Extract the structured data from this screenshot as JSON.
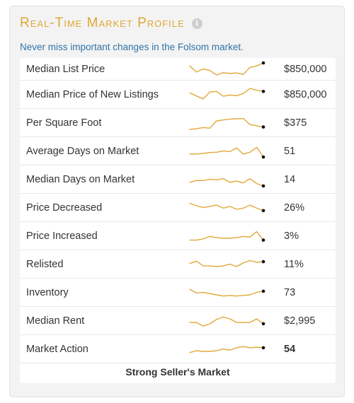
{
  "header": {
    "title": "Real-Time Market Profile",
    "info_icon": "info-icon",
    "info_glyph": "i",
    "subtitle": "Never miss important changes in the Folsom market."
  },
  "accent_color": "#dfa836",
  "rows": [
    {
      "label": "Median List Price",
      "value": "$850,000",
      "trend": [
        1,
        3,
        2,
        2.5,
        4,
        3.2,
        3.5,
        3.3,
        3.8,
        1.5,
        1,
        0
      ]
    },
    {
      "label": "Median Price of New Listings",
      "value": "$850,000",
      "trend": [
        1.5,
        2.5,
        3.5,
        1.2,
        1,
        2.6,
        2.2,
        2.4,
        1.7,
        0,
        0.6,
        1
      ]
    },
    {
      "label": "Per Square Foot",
      "value": "$375",
      "trend": [
        4.2,
        4,
        3.6,
        3.8,
        1.4,
        1.1,
        0.8,
        0.7,
        0.6,
        2.6,
        3,
        3.4
      ]
    },
    {
      "label": "Average Days on Market",
      "value": "51",
      "trend": [
        3,
        3,
        2.8,
        2.5,
        2.4,
        2,
        2.2,
        1,
        3,
        2.4,
        0.8,
        4
      ]
    },
    {
      "label": "Median Days on Market",
      "value": "14",
      "trend": [
        3,
        2.4,
        2.4,
        2,
        2.2,
        1.8,
        3,
        2.6,
        3.2,
        1.8,
        3.4,
        4.2
      ]
    },
    {
      "label": "Price Decreased",
      "value": "26%",
      "trend": [
        0.6,
        1.4,
        2,
        1.6,
        1.2,
        2.2,
        1.6,
        2.6,
        2.2,
        1.2,
        2.2,
        3
      ]
    },
    {
      "label": "Price Increased",
      "value": "3%",
      "trend": [
        3.4,
        3.4,
        3,
        2.2,
        2.6,
        2.8,
        2.8,
        2.6,
        2.2,
        2.4,
        0.6,
        3.4
      ]
    },
    {
      "label": "Relisted",
      "value": "11%",
      "trend": [
        1.8,
        1,
        2.6,
        2.6,
        2.8,
        2.6,
        2,
        2.8,
        1.6,
        0.8,
        1.4,
        1.2
      ]
    },
    {
      "label": "Inventory",
      "value": "73",
      "trend": [
        1,
        2.2,
        2,
        2.4,
        2.8,
        3.2,
        3,
        3.2,
        3,
        2.8,
        2,
        1.6
      ]
    },
    {
      "label": "Median Rent",
      "value": "$2,995",
      "trend": [
        2.6,
        2.6,
        3.8,
        3,
        1.6,
        0.8,
        1.4,
        2.6,
        2.6,
        2.6,
        1.4,
        3
      ]
    },
    {
      "label": "Market Action",
      "value": "54",
      "trend": [
        3.2,
        2.6,
        2.8,
        2.8,
        2.6,
        2,
        2.4,
        1.6,
        1.2,
        1.6,
        1.4,
        1.6
      ],
      "value_bold": true
    }
  ],
  "footer": {
    "verdict": "Strong Seller's Market"
  }
}
